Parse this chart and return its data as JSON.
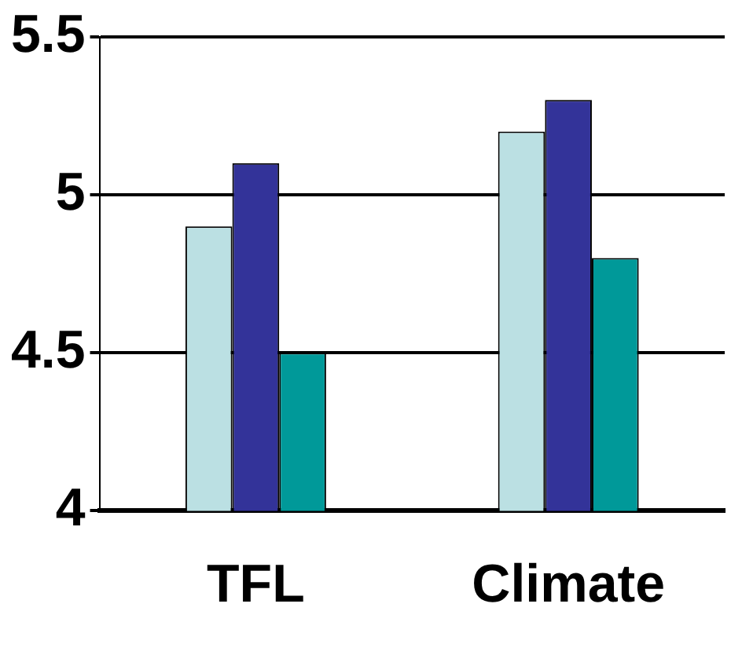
{
  "chart_data": {
    "type": "bar",
    "categories": [
      "TFL",
      "Climate"
    ],
    "series": [
      {
        "color": "#bbe0e3",
        "values": [
          4.9,
          5.2
        ]
      },
      {
        "color": "#333399",
        "values": [
          5.1,
          5.3
        ]
      },
      {
        "color": "#009999",
        "values": [
          4.5,
          4.8
        ]
      }
    ],
    "ylim": [
      4,
      5.5
    ],
    "yticks": [
      4,
      4.5,
      5,
      5.5
    ],
    "grid": "y",
    "legend": false
  }
}
